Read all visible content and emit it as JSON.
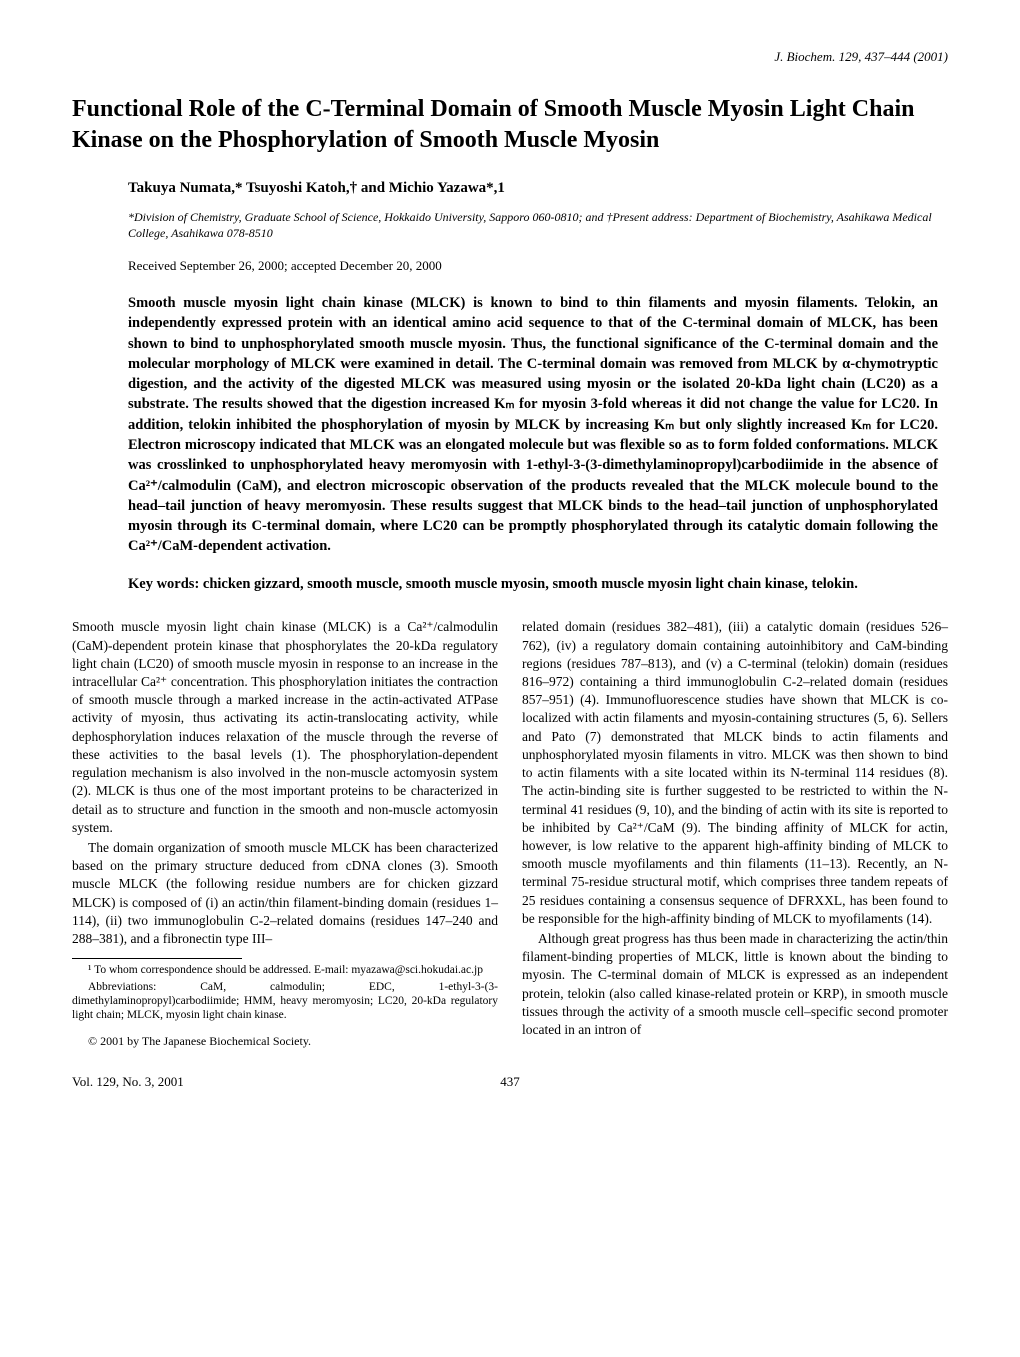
{
  "journal_ref": "J. Biochem. 129, 437–444 (2001)",
  "title": "Functional Role of the C-Terminal Domain of Smooth Muscle Myosin Light Chain Kinase on the Phosphorylation of Smooth Muscle Myosin",
  "authors": "Takuya Numata,* Tsuyoshi Katoh,† and Michio Yazawa*,1",
  "affiliation": "*Division of Chemistry, Graduate School of Science, Hokkaido University, Sapporo 060-0810; and †Present address: Department of Biochemistry, Asahikawa Medical College, Asahikawa 078-8510",
  "received": "Received September 26, 2000; accepted December 20, 2000",
  "abstract": "Smooth muscle myosin light chain kinase (MLCK) is known to bind to thin filaments and myosin filaments. Telokin, an independently expressed protein with an identical amino acid sequence to that of the C-terminal domain of MLCK, has been shown to bind to unphosphorylated smooth muscle myosin. Thus, the functional significance of the C-terminal domain and the molecular morphology of MLCK were examined in detail. The C-terminal domain was removed from MLCK by α-chymotryptic digestion, and the activity of the digested MLCK was measured using myosin or the isolated 20-kDa light chain (LC20) as a substrate. The results showed that the digestion increased Kₘ for myosin 3-fold whereas it did not change the value for LC20. In addition, telokin inhibited the phosphorylation of myosin by MLCK by increasing Kₘ but only slightly increased Kₘ for LC20. Electron microscopy indicated that MLCK was an elongated molecule but was flexible so as to form folded conformations. MLCK was crosslinked to unphosphorylated heavy meromyosin with 1-ethyl-3-(3-dimethylaminopropyl)carbodiimide in the absence of Ca²⁺/calmodulin (CaM), and electron microscopic observation of the products revealed that the MLCK molecule bound to the head–tail junction of heavy meromyosin. These results suggest that MLCK binds to the head–tail junction of unphosphorylated myosin through its C-terminal domain, where LC20 can be promptly phosphorylated through its catalytic domain following the Ca²⁺/CaM-dependent activation.",
  "keywords": "Key words: chicken gizzard, smooth muscle, smooth muscle myosin, smooth muscle myosin light chain kinase, telokin.",
  "body_p1": "Smooth muscle myosin light chain kinase (MLCK) is a Ca²⁺/calmodulin (CaM)-dependent protein kinase that phosphorylates the 20-kDa regulatory light chain (LC20) of smooth muscle myosin in response to an increase in the intracellular Ca²⁺ concentration. This phosphorylation initiates the contraction of smooth muscle through a marked increase in the actin-activated ATPase activity of myosin, thus activating its actin-translocating activity, while dephosphorylation induces relaxation of the muscle through the reverse of these activities to the basal levels (1). The phosphorylation-dependent regulation mechanism is also involved in the non-muscle actomyosin system (2). MLCK is thus one of the most important proteins to be characterized in detail as to structure and function in the smooth and non-muscle actomyosin system.",
  "body_p2": "The domain organization of smooth muscle MLCK has been characterized based on the primary structure deduced from cDNA clones (3). Smooth muscle MLCK (the following residue numbers are for chicken gizzard MLCK) is composed of (i) an actin/thin filament-binding domain (residues 1–114), (ii) two immunoglobulin C-2–related domains (residues 147–240 and 288–381), and a fibronectin type III–",
  "body_p3": "related domain (residues 382–481), (iii) a catalytic domain (residues 526–762), (iv) a regulatory domain containing autoinhibitory and CaM-binding regions (residues 787–813), and (v) a C-terminal (telokin) domain (residues 816–972) containing a third immunoglobulin C-2–related domain (residues 857–951) (4). Immunofluorescence studies have shown that MLCK is co-localized with actin filaments and myosin-containing structures (5, 6). Sellers and Pato (7) demonstrated that MLCK binds to actin filaments and unphosphorylated myosin filaments in vitro. MLCK was then shown to bind to actin filaments with a site located within its N-terminal 114 residues (8). The actin-binding site is further suggested to be restricted to within the N-terminal 41 residues (9, 10), and the binding of actin with its site is reported to be inhibited by Ca²⁺/CaM (9). The binding affinity of MLCK for actin, however, is low relative to the apparent high-affinity binding of MLCK to smooth muscle myofilaments and thin filaments (11–13). Recently, an N-terminal 75-residue structural motif, which comprises three tandem repeats of 25 residues containing a consensus sequence of DFRXXL, has been found to be responsible for the high-affinity binding of MLCK to myofilaments (14).",
  "body_p4": "Although great progress has thus been made in characterizing the actin/thin filament-binding properties of MLCK, little is known about the binding to myosin. The C-terminal domain of MLCK is expressed as an independent protein, telokin (also called kinase-related protein or KRP), in smooth muscle tissues through the activity of a smooth muscle cell–specific second promoter located in an intron of",
  "footnote1": "¹ To whom correspondence should be addressed. E-mail: myazawa@sci.hokudai.ac.jp",
  "footnote2": "Abbreviations: CaM, calmodulin; EDC, 1-ethyl-3-(3-dimethylaminopropyl)carbodiimide; HMM, heavy meromyosin; LC20, 20-kDa regulatory light chain; MLCK, myosin light chain kinase.",
  "copyright": "© 2001 by The Japanese Biochemical Society.",
  "footer_left": "Vol. 129, No. 3, 2001",
  "footer_center": "437"
}
